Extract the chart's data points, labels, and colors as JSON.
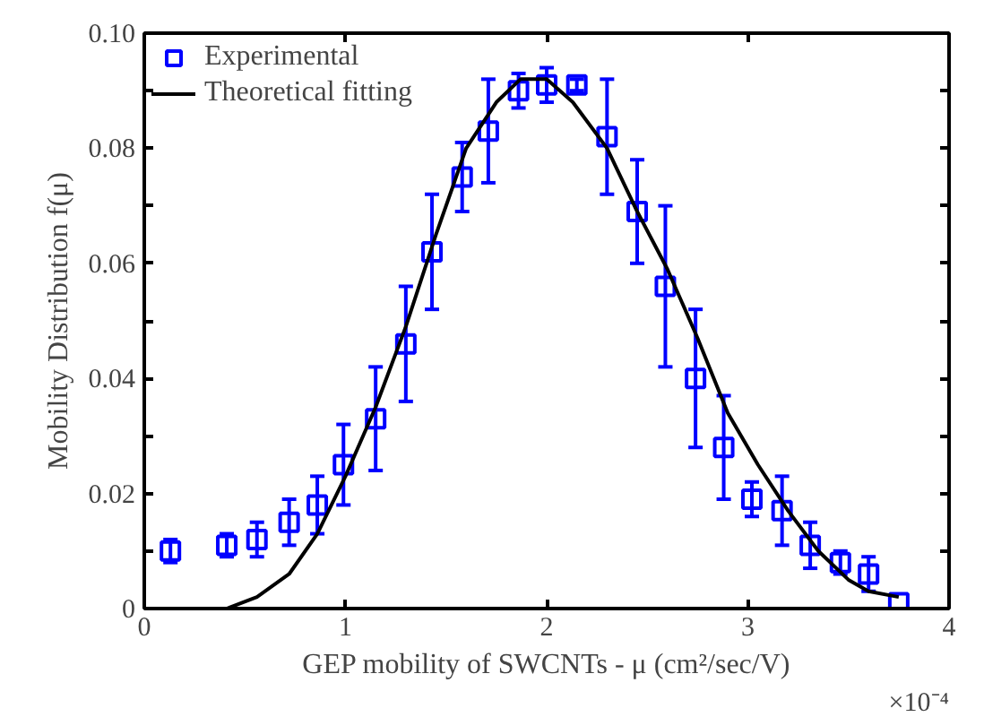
{
  "chart_data": {
    "type": "scatter",
    "xlabel": "GEP mobility of SWCNTs - μ (cm²/sec/V)",
    "ylabel": "Mobility Distribution f(μ)",
    "annotations": [
      "×10⁻⁴"
    ],
    "xlim": [
      0,
      4
    ],
    "xticks": [
      0,
      1,
      2,
      3,
      4
    ],
    "ylim": [
      0,
      0.1
    ],
    "yticks": [
      0,
      {
        "value": 0.01,
        "label": null
      },
      {
        "value": 0.02,
        "label": "0.02"
      },
      {
        "value": 0.03,
        "label": null
      },
      {
        "value": 0.04,
        "label": "0.04"
      },
      {
        "value": 0.05,
        "label": null
      },
      {
        "value": 0.06,
        "label": "0.06"
      },
      {
        "value": 0.07,
        "label": null
      },
      {
        "value": 0.08,
        "label": "0.08"
      },
      {
        "value": 0.09,
        "label": null
      },
      {
        "value": 0.1,
        "label": "0.10"
      }
    ],
    "grid": false,
    "legend": "top left",
    "series": [
      {
        "name": "Experimental",
        "marker": "square",
        "color": "#0000ff",
        "x": [
          0.13,
          0.41,
          0.56,
          0.72,
          0.86,
          0.99,
          1.15,
          1.3,
          1.43,
          1.58,
          1.71,
          1.86,
          2.0,
          2.15,
          2.3,
          2.45,
          2.59,
          2.74,
          2.88,
          3.02,
          3.17,
          3.31,
          3.46,
          3.6,
          3.75
        ],
        "values": [
          0.01,
          0.011,
          0.012,
          0.015,
          0.018,
          0.025,
          0.033,
          0.046,
          0.062,
          0.075,
          0.083,
          0.09,
          0.091,
          0.091,
          0.082,
          0.069,
          0.056,
          0.04,
          0.028,
          0.019,
          0.017,
          0.011,
          0.008,
          0.006,
          0.001
        ],
        "errors": [
          0.002,
          0.002,
          0.003,
          0.004,
          0.005,
          0.007,
          0.009,
          0.01,
          0.01,
          0.006,
          0.009,
          0.003,
          0.003,
          0.001,
          0.01,
          0.009,
          0.014,
          0.012,
          0.009,
          0.003,
          0.006,
          0.004,
          0.002,
          0.003,
          null
        ]
      },
      {
        "name": "Theoretical fitting",
        "type": "line",
        "line_style": "solid",
        "color": "#000000",
        "x": [
          0.13,
          0.41,
          0.56,
          0.72,
          0.86,
          1.0,
          1.15,
          1.3,
          1.45,
          1.6,
          1.75,
          1.87,
          2.0,
          2.13,
          2.3,
          2.45,
          2.6,
          2.75,
          2.9,
          3.05,
          3.2,
          3.35,
          3.5,
          3.6,
          3.75
        ],
        "values": [
          0,
          0,
          0.002,
          0.006,
          0.013,
          0.023,
          0.035,
          0.049,
          0.065,
          0.08,
          0.088,
          0.092,
          0.092,
          0.088,
          0.08,
          0.069,
          0.059,
          0.047,
          0.034,
          0.025,
          0.017,
          0.01,
          0.005,
          0.003,
          0.002
        ]
      }
    ]
  }
}
